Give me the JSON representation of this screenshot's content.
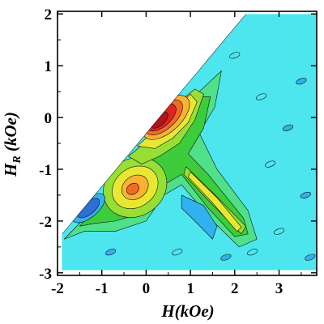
{
  "chart_data": {
    "type": "heatmap",
    "subtype": "filled-contour",
    "xlabel": "H(kOe)",
    "ylabel_main": "H",
    "ylabel_subscript": "R",
    "ylabel_unit": " (kOe)",
    "xlim": [
      -2.0,
      3.85
    ],
    "ylim": [
      -3.05,
      2.05
    ],
    "xticks": [
      -2,
      -1,
      0,
      1,
      2,
      3
    ],
    "yticks": [
      -3,
      -2,
      -1,
      0,
      1,
      2
    ],
    "xtick_labels": [
      "-2",
      "-1",
      "0",
      "1",
      "2",
      "3"
    ],
    "ytick_labels": [
      "-3",
      "-2",
      "-1",
      "0",
      "1",
      "2"
    ],
    "grid": false,
    "colormap": [
      "#2e6fd6",
      "#2fb2ee",
      "#4ee6ee",
      "#4fe089",
      "#3dcc3c",
      "#97df35",
      "#e8e833",
      "#f9b232",
      "#f06a28",
      "#e0241f",
      "#b3141a"
    ],
    "background_color": "#4ee6ee",
    "data_region": {
      "description": "measured region bounded by diagonal line H_R = H going from (-1.9,-2.3) to (2.2,2.0), upper-left empty",
      "diagonal": [
        [
          -1.9,
          -2.25
        ],
        [
          2.25,
          2.0
        ]
      ],
      "bottom_y": -2.95,
      "right_x": 3.85
    },
    "features": [
      {
        "name": "main peak",
        "x": 0.2,
        "y": 0.0,
        "level": 10
      },
      {
        "name": "secondary peak",
        "x": -0.25,
        "y": -1.35,
        "level": 7
      },
      {
        "name": "ridge",
        "x": [
          0.9,
          2.2
        ],
        "y": [
          -1.0,
          -2.2
        ],
        "level": 6
      },
      {
        "name": "negative region",
        "x": 1.2,
        "y": -1.9,
        "level": 1
      },
      {
        "name": "negative lobe",
        "x": -1.3,
        "y": -1.75,
        "level": 0
      }
    ]
  }
}
